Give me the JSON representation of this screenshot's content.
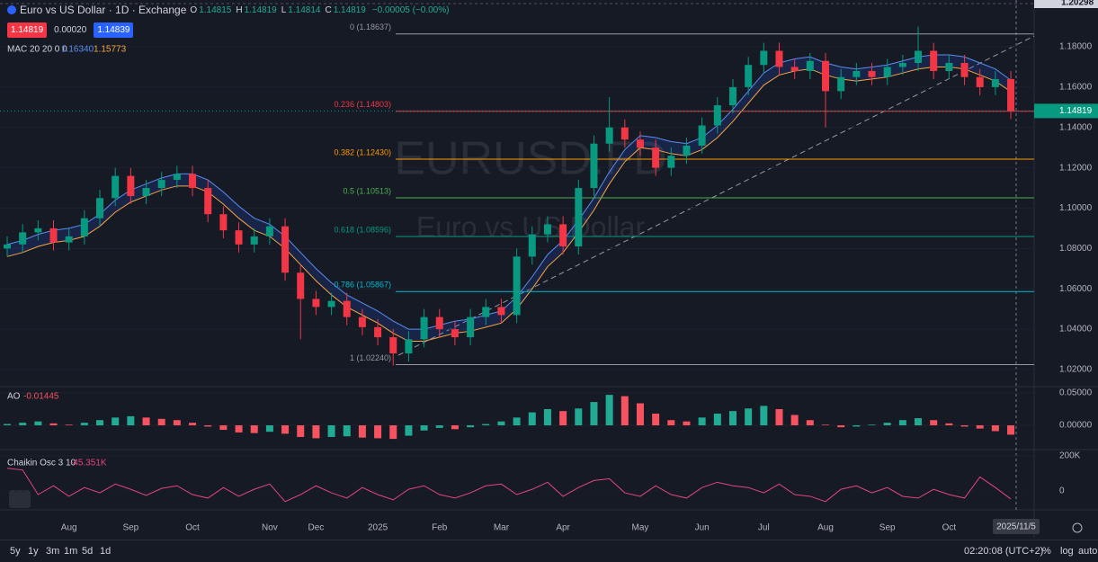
{
  "header": {
    "symbol": "Euro vs US Dollar · 1D · Exchange",
    "ohlc": [
      {
        "key": "O",
        "value": "1.14815"
      },
      {
        "key": "H",
        "value": "1.14819"
      },
      {
        "key": "L",
        "value": "1.14814"
      },
      {
        "key": "C",
        "value": "1.14819"
      }
    ],
    "change": "−0.00005 (−0.00%)",
    "sell": "1.14819",
    "spread": "0.00020",
    "buy": "1.14839"
  },
  "toolbar": {
    "ranges": [
      "5y",
      "1y",
      "3m",
      "1m",
      "5d",
      "1d"
    ],
    "clock": "02:20:08 (UTC+2)",
    "options": [
      "%",
      "log",
      "auto"
    ]
  },
  "chart_data": [
    {
      "type": "candlestick",
      "watermark": [
        "EURUSD.FD",
        "Euro vs US Dollar"
      ],
      "top_label": "1.20298",
      "price_tag": "1.14819",
      "date_marker": "2025/11/5",
      "up_color": "#089981",
      "down_color": "#f23645",
      "categories": [
        null,
        null,
        null,
        null,
        "Aug",
        null,
        null,
        null,
        "Sep",
        null,
        null,
        null,
        "Oct",
        null,
        null,
        null,
        null,
        "Nov",
        null,
        null,
        "Dec",
        null,
        null,
        null,
        "2025",
        null,
        null,
        null,
        "Feb",
        null,
        null,
        null,
        "Mar",
        null,
        null,
        null,
        "Apr",
        null,
        null,
        null,
        null,
        "May",
        null,
        null,
        null,
        "Jun",
        null,
        null,
        null,
        "Jul",
        null,
        null,
        null,
        "Aug",
        null,
        null,
        null,
        "Sep",
        null,
        null,
        null,
        "Oct",
        null,
        null,
        null,
        null
      ],
      "open": [
        1.08,
        1.082,
        1.088,
        1.09,
        1.083,
        1.086,
        1.095,
        1.105,
        1.116,
        1.106,
        1.11,
        1.114,
        1.117,
        1.11,
        1.097,
        1.089,
        1.082,
        1.086,
        1.091,
        1.068,
        1.055,
        1.051,
        1.054,
        1.046,
        1.041,
        1.036,
        1.028,
        1.035,
        1.046,
        1.04,
        1.036,
        1.046,
        1.051,
        1.047,
        1.076,
        1.087,
        1.092,
        1.081,
        1.11,
        1.132,
        1.14,
        1.134,
        1.13,
        1.12,
        1.126,
        1.131,
        1.141,
        1.151,
        1.16,
        1.171,
        1.178,
        1.17,
        1.168,
        1.173,
        1.158,
        1.165,
        1.168,
        1.165,
        1.17,
        1.172,
        1.178,
        1.168,
        1.172,
        1.165,
        1.16,
        1.164
      ],
      "high": [
        1.086,
        1.092,
        1.094,
        1.094,
        1.09,
        1.099,
        1.109,
        1.12,
        1.12,
        1.114,
        1.118,
        1.121,
        1.121,
        1.114,
        1.101,
        1.093,
        1.09,
        1.095,
        1.095,
        1.072,
        1.059,
        1.058,
        1.058,
        1.05,
        1.045,
        1.04,
        1.039,
        1.05,
        1.05,
        1.044,
        1.05,
        1.055,
        1.055,
        1.08,
        1.091,
        1.096,
        1.096,
        1.114,
        1.136,
        1.155,
        1.144,
        1.138,
        1.134,
        1.13,
        1.135,
        1.145,
        1.155,
        1.164,
        1.175,
        1.182,
        1.182,
        1.174,
        1.177,
        1.177,
        1.169,
        1.172,
        1.172,
        1.174,
        1.176,
        1.19,
        1.182,
        1.176,
        1.176,
        1.169,
        1.168,
        1.168
      ],
      "low": [
        1.076,
        1.078,
        1.084,
        1.079,
        1.079,
        1.082,
        1.091,
        1.101,
        1.102,
        1.102,
        1.106,
        1.11,
        1.106,
        1.093,
        1.085,
        1.078,
        1.078,
        1.082,
        1.064,
        1.035,
        1.047,
        1.047,
        1.042,
        1.037,
        1.032,
        1.022,
        1.024,
        1.031,
        1.036,
        1.032,
        1.032,
        1.042,
        1.043,
        1.043,
        1.072,
        1.083,
        1.077,
        1.077,
        1.106,
        1.128,
        1.13,
        1.126,
        1.116,
        1.116,
        1.122,
        1.127,
        1.137,
        1.147,
        1.156,
        1.167,
        1.166,
        1.164,
        1.164,
        1.14,
        1.154,
        1.161,
        1.161,
        1.161,
        1.166,
        1.168,
        1.164,
        1.164,
        1.161,
        1.156,
        1.156,
        1.1442
      ],
      "close": [
        1.082,
        1.088,
        1.09,
        1.083,
        1.086,
        1.095,
        1.105,
        1.116,
        1.106,
        1.11,
        1.114,
        1.117,
        1.11,
        1.097,
        1.089,
        1.082,
        1.086,
        1.091,
        1.068,
        1.055,
        1.051,
        1.054,
        1.046,
        1.041,
        1.036,
        1.028,
        1.035,
        1.046,
        1.04,
        1.036,
        1.046,
        1.051,
        1.047,
        1.076,
        1.087,
        1.092,
        1.081,
        1.11,
        1.132,
        1.14,
        1.134,
        1.13,
        1.12,
        1.126,
        1.131,
        1.141,
        1.151,
        1.16,
        1.171,
        1.178,
        1.17,
        1.168,
        1.173,
        1.158,
        1.165,
        1.168,
        1.165,
        1.17,
        1.172,
        1.178,
        1.168,
        1.172,
        1.165,
        1.16,
        1.164,
        1.1482
      ],
      "indicator": {
        "name": "MAC 20 20 0 0",
        "band_color": "rgba(41,98,255,0.16)",
        "upper": {
          "color": "#5b8def",
          "label": "1.16340",
          "values": [
            1.082,
            1.084,
            1.087,
            1.089,
            1.09,
            1.092,
            1.097,
            1.104,
            1.109,
            1.112,
            1.115,
            1.117,
            1.117,
            1.114,
            1.108,
            1.101,
            1.095,
            1.092,
            1.086,
            1.078,
            1.07,
            1.063,
            1.057,
            1.053,
            1.049,
            1.044,
            1.04,
            1.04,
            1.042,
            1.044,
            1.045,
            1.047,
            1.049,
            1.056,
            1.066,
            1.077,
            1.084,
            1.094,
            1.105,
            1.118,
            1.129,
            1.136,
            1.135,
            1.133,
            1.132,
            1.135,
            1.141,
            1.149,
            1.158,
            1.167,
            1.172,
            1.174,
            1.175,
            1.172,
            1.17,
            1.169,
            1.17,
            1.171,
            1.173,
            1.175,
            1.176,
            1.176,
            1.175,
            1.172,
            1.169,
            1.1634
          ]
        },
        "lower": {
          "color": "#f7a541",
          "label": "1.15773",
          "values": [
            1.076,
            1.078,
            1.081,
            1.083,
            1.084,
            1.086,
            1.091,
            1.098,
            1.103,
            1.106,
            1.109,
            1.111,
            1.111,
            1.108,
            1.102,
            1.095,
            1.089,
            1.086,
            1.08,
            1.072,
            1.064,
            1.057,
            1.051,
            1.047,
            1.043,
            1.038,
            1.034,
            1.034,
            1.036,
            1.038,
            1.039,
            1.041,
            1.043,
            1.05,
            1.06,
            1.071,
            1.078,
            1.088,
            1.099,
            1.112,
            1.123,
            1.13,
            1.129,
            1.127,
            1.126,
            1.129,
            1.135,
            1.143,
            1.152,
            1.161,
            1.166,
            1.168,
            1.169,
            1.166,
            1.164,
            1.163,
            1.164,
            1.165,
            1.167,
            1.169,
            1.17,
            1.17,
            1.169,
            1.166,
            1.163,
            1.15773
          ]
        }
      },
      "fib": [
        {
          "label": "0 (1.18637)",
          "value": 1.18637,
          "color": "#9598a1"
        },
        {
          "label": "0.236 (1.14803)",
          "value": 1.14803,
          "color": "#f23645"
        },
        {
          "label": "0.382 (1.12430)",
          "value": 1.1243,
          "color": "#ff9800"
        },
        {
          "label": "0.5 (1.10513)",
          "value": 1.10513,
          "color": "#4caf50"
        },
        {
          "label": "0.618 (1.08596)",
          "value": 1.08596,
          "color": "#089981"
        },
        {
          "label": "0.786 (1.05867)",
          "value": 1.05867,
          "color": "#00bcd4"
        },
        {
          "label": "1 (1.02240)",
          "value": 1.0224,
          "color": "#9598a1"
        }
      ],
      "ylim": [
        1.0115,
        1.2032
      ],
      "yticks": [
        {
          "value": 1.02,
          "label": "1.02000"
        },
        {
          "value": 1.04,
          "label": "1.04000"
        },
        {
          "value": 1.06,
          "label": "1.06000"
        },
        {
          "value": 1.08,
          "label": "1.08000"
        },
        {
          "value": 1.1,
          "label": "1.10000"
        },
        {
          "value": 1.12,
          "label": "1.12000"
        },
        {
          "value": 1.14,
          "label": "1.14000"
        },
        {
          "value": 1.16,
          "label": "1.16000"
        },
        {
          "value": 1.18,
          "label": "1.18000"
        }
      ]
    },
    {
      "type": "bar",
      "title": "AO",
      "value_label": "-0.01445",
      "up_color": "#22ab94",
      "down_color": "#f7525f",
      "values": [
        0.002,
        0.004,
        0.006,
        0.003,
        0.001,
        0.004,
        0.008,
        0.012,
        0.014,
        0.012,
        0.01,
        0.008,
        0.004,
        -0.002,
        -0.007,
        -0.011,
        -0.012,
        -0.01,
        -0.013,
        -0.018,
        -0.02,
        -0.018,
        -0.017,
        -0.019,
        -0.02,
        -0.021,
        -0.016,
        -0.008,
        -0.004,
        -0.006,
        -0.003,
        0.002,
        0.006,
        0.012,
        0.02,
        0.025,
        0.022,
        0.026,
        0.036,
        0.047,
        0.045,
        0.034,
        0.018,
        0.008,
        0.006,
        0.012,
        0.018,
        0.022,
        0.026,
        0.03,
        0.025,
        0.016,
        0.008,
        0.001,
        -0.003,
        -0.002,
        0.001,
        0.004,
        0.008,
        0.011,
        0.008,
        0.003,
        -0.002,
        -0.005,
        -0.009,
        -0.01445
      ],
      "ylim": [
        -0.0375,
        0.0597
      ],
      "yticks": [
        {
          "value": 0.05,
          "label": "0.05000"
        },
        {
          "value": 0,
          "label": "0.00000"
        }
      ]
    },
    {
      "type": "line",
      "title": "Chaikin Osc 3 10",
      "value_label": "-45.351K",
      "color": "#e5467b",
      "values": [
        130000,
        120000,
        -20000,
        30000,
        -30000,
        20000,
        -10000,
        40000,
        10000,
        -25000,
        15000,
        30000,
        -20000,
        -40000,
        20000,
        -30000,
        10000,
        40000,
        -60000,
        -20000,
        30000,
        -10000,
        -40000,
        20000,
        -20000,
        -50000,
        10000,
        30000,
        -20000,
        -40000,
        -10000,
        30000,
        40000,
        -20000,
        10000,
        50000,
        -30000,
        20000,
        60000,
        70000,
        -10000,
        -30000,
        30000,
        -20000,
        -40000,
        20000,
        50000,
        30000,
        20000,
        -10000,
        40000,
        -20000,
        -30000,
        -60000,
        10000,
        30000,
        -10000,
        20000,
        -30000,
        -40000,
        10000,
        -20000,
        -40000,
        80000,
        20000,
        -45351
      ],
      "ylim": [
        -107000,
        236000
      ],
      "yticks": [
        {
          "value": 200000,
          "label": "200K"
        },
        0
      ]
    }
  ]
}
